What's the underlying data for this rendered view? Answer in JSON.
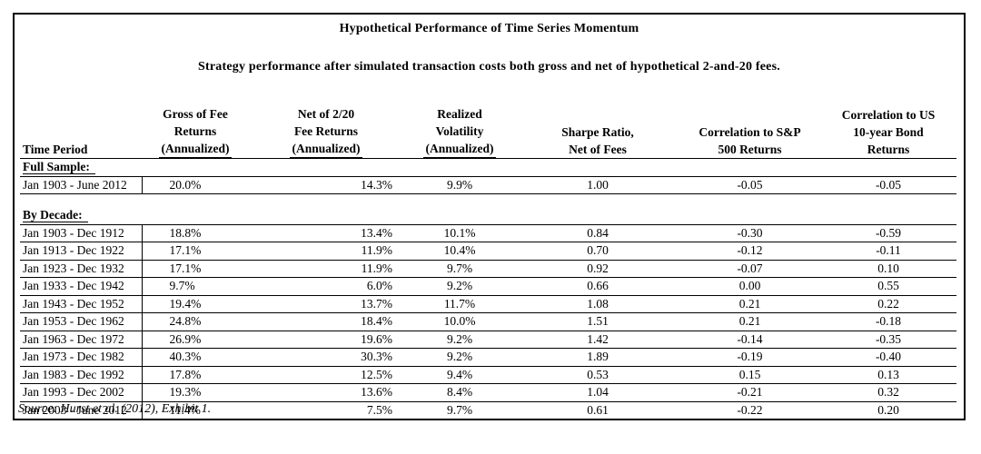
{
  "title": "Hypothetical Performance of Time Series Momentum",
  "subtitle": "Strategy performance after simulated transaction costs both gross and net of hypothetical 2-and-20 fees.",
  "columns": [
    {
      "line1": "",
      "line2": "",
      "line3": "Time Period"
    },
    {
      "line1": "Gross of Fee",
      "line2": "Returns",
      "line3": "(Annualized)"
    },
    {
      "line1": "Net of 2/20",
      "line2": "Fee Returns",
      "line3": "(Annualized)"
    },
    {
      "line1": "Realized",
      "line2": "Volatility",
      "line3": "(Annualized)"
    },
    {
      "line1": "",
      "line2": "Sharpe Ratio,",
      "line3": "Net of Fees"
    },
    {
      "line1": "",
      "line2": "Correlation to S&P",
      "line3": "500 Returns"
    },
    {
      "line1": "Correlation to US",
      "line2": "10-year Bond",
      "line3": "Returns"
    }
  ],
  "full_sample": {
    "label": "Full Sample:",
    "rows": [
      [
        "Jan 1903 - June 2012",
        "20.0%",
        "14.3%",
        "9.9%",
        "1.00",
        "-0.05",
        "-0.05"
      ]
    ]
  },
  "by_decade": {
    "label": "By Decade:",
    "rows": [
      [
        "Jan 1903 - Dec 1912",
        "18.8%",
        "13.4%",
        "10.1%",
        "0.84",
        "-0.30",
        "-0.59"
      ],
      [
        "Jan 1913 - Dec 1922",
        "17.1%",
        "11.9%",
        "10.4%",
        "0.70",
        "-0.12",
        "-0.11"
      ],
      [
        "Jan 1923 - Dec 1932",
        "17.1%",
        "11.9%",
        "9.7%",
        "0.92",
        "-0.07",
        "0.10"
      ],
      [
        "Jan 1933 - Dec 1942",
        "9.7%",
        "6.0%",
        "9.2%",
        "0.66",
        "0.00",
        "0.55"
      ],
      [
        "Jan 1943 - Dec 1952",
        "19.4%",
        "13.7%",
        "11.7%",
        "1.08",
        "0.21",
        "0.22"
      ],
      [
        "Jan 1953 - Dec 1962",
        "24.8%",
        "18.4%",
        "10.0%",
        "1.51",
        "0.21",
        "-0.18"
      ],
      [
        "Jan 1963 - Dec 1972",
        "26.9%",
        "19.6%",
        "9.2%",
        "1.42",
        "-0.14",
        "-0.35"
      ],
      [
        "Jan 1973 - Dec 1982",
        "40.3%",
        "30.3%",
        "9.2%",
        "1.89",
        "-0.19",
        "-0.40"
      ],
      [
        "Jan 1983 - Dec 1992",
        "17.8%",
        "12.5%",
        "9.4%",
        "0.53",
        "0.15",
        "0.13"
      ],
      [
        "Jan 1993 - Dec 2002",
        "19.3%",
        "13.6%",
        "8.4%",
        "1.04",
        "-0.21",
        "0.32"
      ],
      [
        "Jan 2003 - June 2012",
        "11.4%",
        "7.5%",
        "9.7%",
        "0.61",
        "-0.22",
        "0.20"
      ]
    ]
  },
  "source": "Source:  Hurst et al. (2012), Exhibit 1."
}
